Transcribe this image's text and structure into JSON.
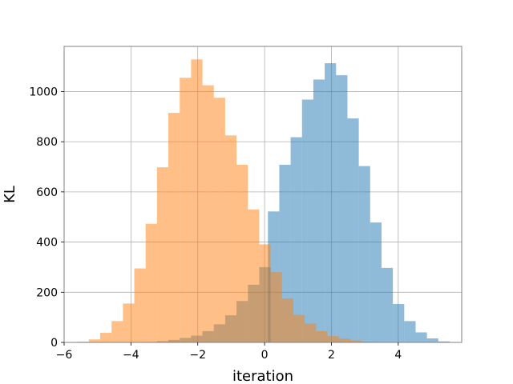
{
  "chart_data": {
    "type": "bar",
    "title": "",
    "xlabel": "iteration",
    "ylabel": "KL",
    "xlim": [
      -6.0,
      5.9
    ],
    "ylim": [
      0,
      1180
    ],
    "xticks": [
      -6,
      -4,
      -2,
      0,
      2,
      4
    ],
    "yticks": [
      0,
      200,
      400,
      600,
      800,
      1000
    ],
    "grid": true,
    "legend": "none",
    "series": [
      {
        "color": "#1f77b4",
        "opacity": 0.5,
        "bin_width": 0.34,
        "bins": [
          {
            "x0": -3.56,
            "value": 2
          },
          {
            "x0": -3.22,
            "value": 5
          },
          {
            "x0": -2.88,
            "value": 10
          },
          {
            "x0": -2.54,
            "value": 18
          },
          {
            "x0": -2.2,
            "value": 27
          },
          {
            "x0": -1.86,
            "value": 45
          },
          {
            "x0": -1.52,
            "value": 72
          },
          {
            "x0": -1.18,
            "value": 108
          },
          {
            "x0": -0.84,
            "value": 165
          },
          {
            "x0": -0.5,
            "value": 230
          },
          {
            "x0": -0.16,
            "value": 300
          },
          {
            "x0": 0.1,
            "value": 522
          },
          {
            "x0": 0.44,
            "value": 708
          },
          {
            "x0": 0.78,
            "value": 818
          },
          {
            "x0": 1.12,
            "value": 968
          },
          {
            "x0": 1.46,
            "value": 1048
          },
          {
            "x0": 1.8,
            "value": 1113
          },
          {
            "x0": 2.14,
            "value": 1065
          },
          {
            "x0": 2.48,
            "value": 893
          },
          {
            "x0": 2.82,
            "value": 703
          },
          {
            "x0": 3.16,
            "value": 478
          },
          {
            "x0": 3.5,
            "value": 297
          },
          {
            "x0": 3.84,
            "value": 153
          },
          {
            "x0": 4.18,
            "value": 85
          },
          {
            "x0": 4.52,
            "value": 40
          },
          {
            "x0": 4.86,
            "value": 16
          },
          {
            "x0": 5.2,
            "value": 4
          }
        ]
      },
      {
        "color": "#ff7f0e",
        "opacity": 0.5,
        "bin_width": 0.34,
        "bins": [
          {
            "x0": -5.6,
            "value": 3
          },
          {
            "x0": -5.26,
            "value": 12
          },
          {
            "x0": -4.92,
            "value": 38
          },
          {
            "x0": -4.58,
            "value": 85
          },
          {
            "x0": -4.24,
            "value": 155
          },
          {
            "x0": -3.9,
            "value": 295
          },
          {
            "x0": -3.56,
            "value": 473
          },
          {
            "x0": -3.22,
            "value": 698
          },
          {
            "x0": -2.88,
            "value": 915
          },
          {
            "x0": -2.54,
            "value": 1055
          },
          {
            "x0": -2.2,
            "value": 1128
          },
          {
            "x0": -1.86,
            "value": 1025
          },
          {
            "x0": -1.52,
            "value": 975
          },
          {
            "x0": -1.18,
            "value": 825
          },
          {
            "x0": -0.84,
            "value": 708
          },
          {
            "x0": -0.5,
            "value": 530
          },
          {
            "x0": -0.16,
            "value": 391
          },
          {
            "x0": 0.18,
            "value": 280
          },
          {
            "x0": 0.52,
            "value": 175
          },
          {
            "x0": 0.86,
            "value": 110
          },
          {
            "x0": 1.2,
            "value": 75
          },
          {
            "x0": 1.54,
            "value": 45
          },
          {
            "x0": 1.88,
            "value": 25
          },
          {
            "x0": 2.22,
            "value": 15
          },
          {
            "x0": 2.56,
            "value": 8
          },
          {
            "x0": 2.9,
            "value": 3
          }
        ]
      }
    ]
  }
}
